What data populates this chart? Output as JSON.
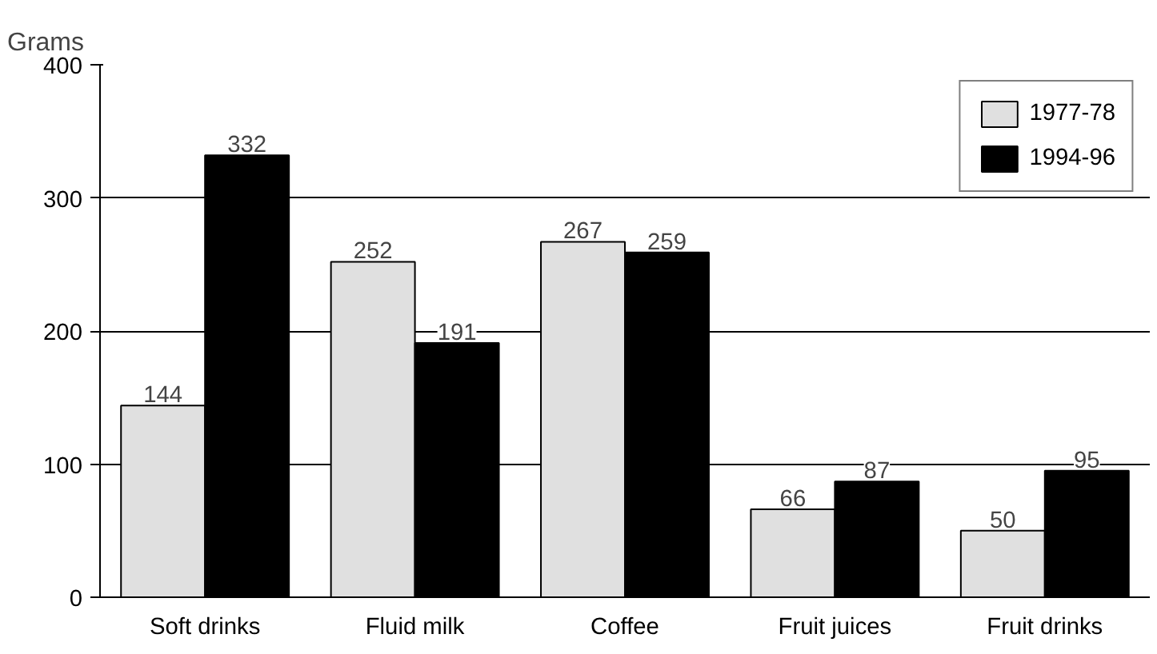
{
  "chart_data": {
    "type": "bar",
    "ylabel": "Grams",
    "categories": [
      "Soft drinks",
      "Fluid milk",
      "Coffee",
      "Fruit juices",
      "Fruit drinks"
    ],
    "series": [
      {
        "name": "1977-78",
        "color": "#e0e0e0",
        "values": [
          144,
          252,
          267,
          66,
          50
        ]
      },
      {
        "name": "1994-96",
        "color": "#000000",
        "values": [
          332,
          191,
          259,
          87,
          95
        ]
      }
    ],
    "ylim": [
      0,
      400
    ],
    "yticks": [
      0,
      100,
      200,
      300,
      400
    ],
    "grid": "y",
    "legend": "top right",
    "data_labels": true
  }
}
